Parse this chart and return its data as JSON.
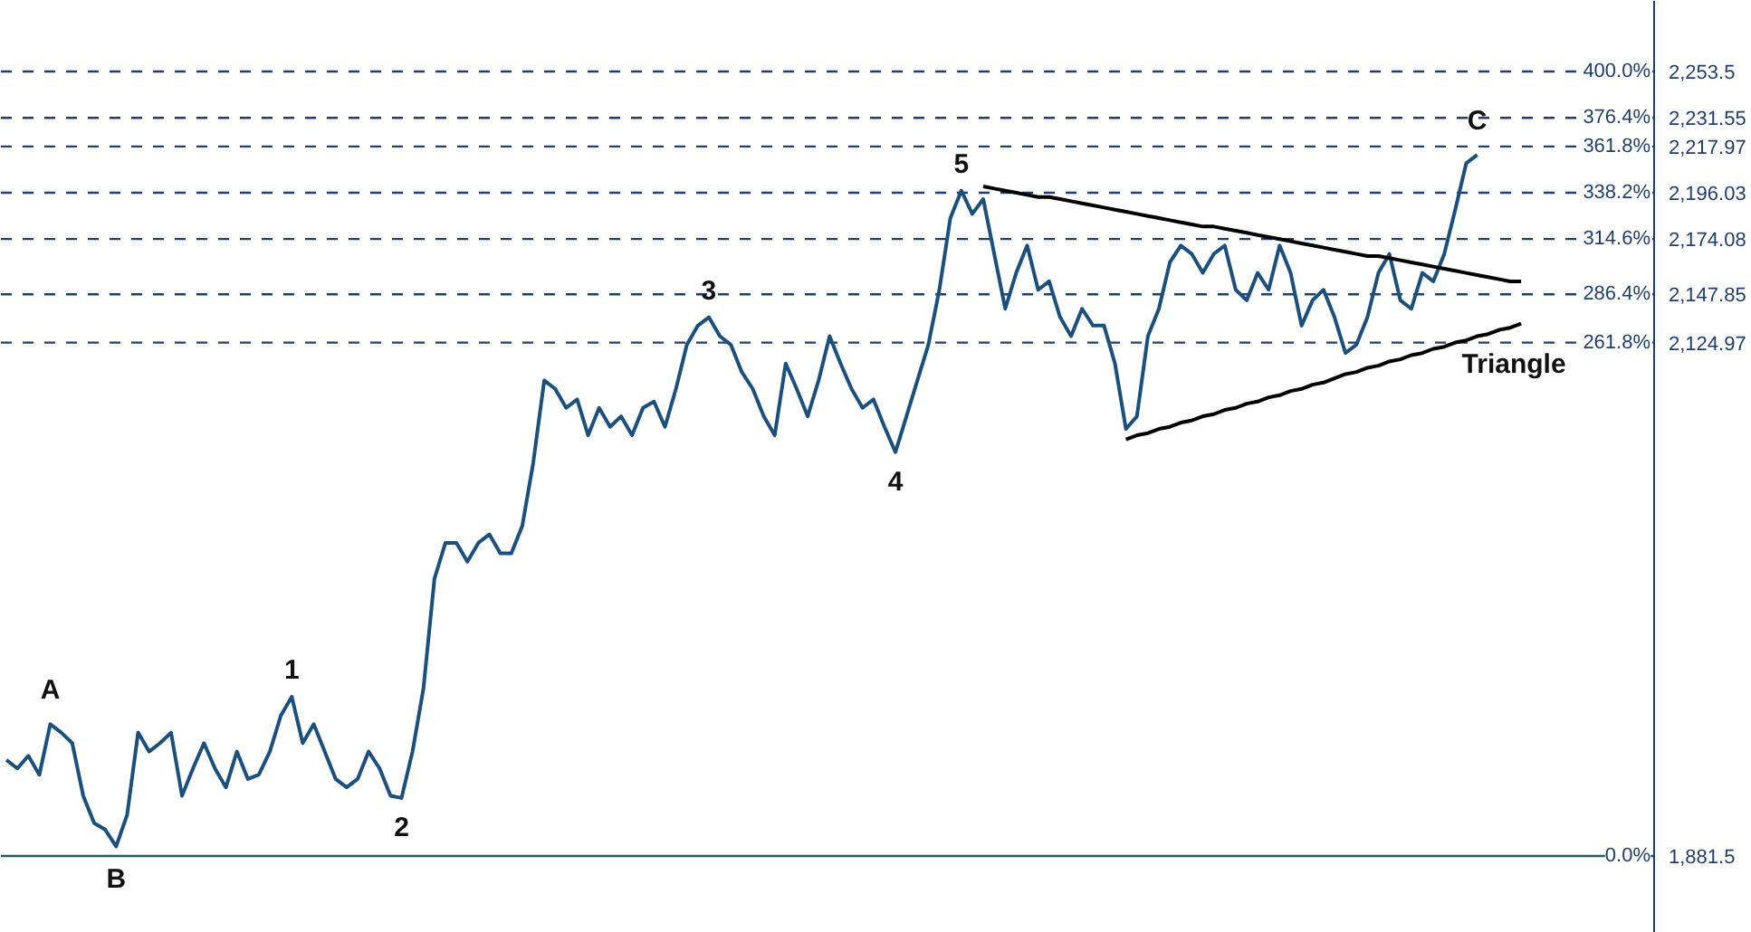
{
  "chart_data": {
    "type": "line",
    "ylim": [
      1845,
      2287
    ],
    "tick_labels": "y",
    "line_style": "solid",
    "categories": [
      null,
      null,
      null,
      null,
      null,
      null,
      null,
      null,
      null,
      null,
      null,
      null,
      null,
      null,
      null,
      null,
      null,
      null,
      null,
      null,
      null,
      null,
      null,
      null,
      null,
      null,
      null,
      null,
      null,
      null,
      null,
      null,
      null,
      null,
      null,
      null,
      null,
      null,
      null,
      null,
      null,
      null,
      null,
      null,
      null,
      null,
      null,
      null,
      null,
      null,
      null,
      null,
      null,
      null,
      null,
      null,
      null,
      null,
      null,
      null,
      null,
      null,
      null,
      null,
      null,
      null,
      null,
      null,
      null,
      null,
      null,
      null,
      null,
      null,
      null,
      null,
      null,
      null,
      null,
      null,
      null,
      null,
      null,
      null,
      null,
      null,
      null,
      null,
      null,
      null,
      null,
      null,
      null,
      null,
      null,
      null,
      null,
      null,
      null,
      null,
      null,
      null,
      null,
      null,
      null,
      null,
      null,
      null,
      null,
      null,
      null,
      null,
      null,
      null,
      null,
      null,
      null,
      null,
      null,
      null,
      null,
      null,
      null,
      null,
      null,
      null,
      null,
      null,
      null,
      null,
      null,
      null,
      null,
      null,
      null,
      null,
      null,
      null,
      null
    ],
    "yticks": [
      {
        "value": 2253.5,
        "label": "2,253.5"
      },
      {
        "value": 2231.55,
        "label": "2,231.55"
      },
      {
        "value": 2217.97,
        "label": "2,217.97"
      },
      {
        "value": 2196.03,
        "label": "2,196.03"
      },
      {
        "value": 2174.08,
        "label": "2,174.08"
      },
      {
        "value": 2147.85,
        "label": "2,147.85"
      },
      {
        "value": 2124.97,
        "label": "2,124.97"
      },
      {
        "value": 1881.5,
        "label": "1,881.5"
      }
    ],
    "annotations": [
      {
        "text": "A",
        "y": 1944
      },
      {
        "text": "B",
        "y": 1886
      },
      {
        "text": "1",
        "y": 1957
      },
      {
        "text": "2",
        "y": 1909
      },
      {
        "text": "3",
        "y": 2137
      },
      {
        "text": "4",
        "y": 2073
      },
      {
        "text": "5",
        "y": 2197
      },
      {
        "text": "C",
        "y": 2214
      },
      {
        "text": "400.0%",
        "y": 2253.5
      },
      {
        "text": "376.4%",
        "y": 2231.55
      },
      {
        "text": "361.8%",
        "y": 2217.97
      },
      {
        "text": "338.2%",
        "y": 2196.03
      },
      {
        "text": "314.6%",
        "y": 2174.08
      },
      {
        "text": "286.4%",
        "y": 2147.85
      },
      {
        "text": "261.8%",
        "y": 2124.97
      },
      {
        "text": "0.0%",
        "y": 1881.5
      }
    ],
    "ref_lines": [
      {
        "axis": "y",
        "value": 2253.5,
        "color": "#1f3f6f",
        "line_style": "dashed"
      },
      {
        "axis": "y",
        "value": 2231.55,
        "color": "#1f3f6f",
        "line_style": "dashed"
      },
      {
        "axis": "y",
        "value": 2217.97,
        "color": "#1f3f6f",
        "line_style": "dashed"
      },
      {
        "axis": "y",
        "value": 2196.03,
        "color": "#1f3f6f",
        "line_style": "dashed"
      },
      {
        "axis": "y",
        "value": 2174.08,
        "color": "#1f3f6f",
        "line_style": "dashed"
      },
      {
        "axis": "y",
        "value": 2147.85,
        "color": "#1f3f6f",
        "line_style": "dashed"
      },
      {
        "axis": "y",
        "value": 2124.97,
        "color": "#1f3f6f",
        "line_style": "dashed"
      },
      {
        "axis": "y",
        "value": 1881.5,
        "color": "#2a5a6a",
        "line_style": "solid"
      }
    ],
    "series": [
      {
        "color": "#1b4f7c",
        "values": [
          1927,
          1923,
          1929,
          1920,
          1944,
          1940,
          1935,
          1910,
          1897,
          1894,
          1886,
          1901,
          1940,
          1931,
          1935,
          1940,
          1910,
          1923,
          1935,
          1923,
          1914,
          1931,
          1918,
          1920,
          1931,
          1948,
          1957,
          1935,
          1944,
          1931,
          1918,
          1914,
          1918,
          1931,
          1923,
          1910,
          1909,
          1931,
          1961,
          2013,
          2030,
          2030,
          2021,
          2030,
          2034,
          2025,
          2025,
          2038,
          2068,
          2107,
          2103,
          2094,
          2098,
          2081,
          2094,
          2085,
          2090,
          2081,
          2094,
          2097,
          2085,
          2103,
          2124,
          2133,
          2137,
          2128,
          2124,
          2111,
          2103,
          2090,
          2081,
          2115,
          2103,
          2090,
          2107,
          2128,
          2115,
          2103,
          2094,
          2098,
          2085,
          2073,
          2090,
          2107,
          2124,
          2150,
          2184,
          2197,
          2186,
          2193,
          2167,
          2141,
          2158,
          2171,
          2150,
          2154,
          2137,
          2128,
          2141,
          2133,
          2133,
          2115,
          2084,
          2090,
          2128,
          2141,
          2163,
          2171,
          2167,
          2158,
          2167,
          2171,
          2150,
          2145,
          2158,
          2150,
          2171,
          2158,
          2133,
          2145,
          2150,
          2137,
          2120,
          2124,
          2137,
          2158,
          2167,
          2145,
          2141,
          2158,
          2154,
          2167,
          2188,
          2210,
          2214,
          null,
          null,
          null,
          null
        ]
      },
      {
        "type": "line",
        "color": "#000000",
        "values": [
          null,
          null,
          null,
          null,
          null,
          null,
          null,
          null,
          null,
          null,
          null,
          null,
          null,
          null,
          null,
          null,
          null,
          null,
          null,
          null,
          null,
          null,
          null,
          null,
          null,
          null,
          null,
          null,
          null,
          null,
          null,
          null,
          null,
          null,
          null,
          null,
          null,
          null,
          null,
          null,
          null,
          null,
          null,
          null,
          null,
          null,
          null,
          null,
          null,
          null,
          null,
          null,
          null,
          null,
          null,
          null,
          null,
          null,
          null,
          null,
          null,
          null,
          null,
          null,
          null,
          null,
          null,
          null,
          null,
          null,
          null,
          null,
          null,
          null,
          null,
          null,
          null,
          null,
          null,
          null,
          null,
          null,
          null,
          null,
          null,
          null,
          null,
          null,
          null,
          2199,
          2198,
          2197,
          2196,
          2195,
          2194,
          2194,
          2193,
          2192,
          2191,
          2190,
          2189,
          2188,
          2187,
          2186,
          2185,
          2184,
          2183,
          2182,
          2181,
          2180,
          2180,
          2179,
          2178,
          2177,
          2176,
          2175,
          2174,
          2173,
          2172,
          2171,
          2170,
          2169,
          2168,
          2167,
          2166,
          2166,
          2165,
          2164,
          2163,
          2162,
          2161,
          2160,
          2159,
          2158,
          2157,
          2156,
          2155,
          2154,
          2154
        ]
      },
      {
        "type": "line",
        "name": "Triangle",
        "color": "#000000",
        "values": [
          null,
          null,
          null,
          null,
          null,
          null,
          null,
          null,
          null,
          null,
          null,
          null,
          null,
          null,
          null,
          null,
          null,
          null,
          null,
          null,
          null,
          null,
          null,
          null,
          null,
          null,
          null,
          null,
          null,
          null,
          null,
          null,
          null,
          null,
          null,
          null,
          null,
          null,
          null,
          null,
          null,
          null,
          null,
          null,
          null,
          null,
          null,
          null,
          null,
          null,
          null,
          null,
          null,
          null,
          null,
          null,
          null,
          null,
          null,
          null,
          null,
          null,
          null,
          null,
          null,
          null,
          null,
          null,
          null,
          null,
          null,
          null,
          null,
          null,
          null,
          null,
          null,
          null,
          null,
          null,
          null,
          null,
          null,
          null,
          null,
          null,
          null,
          null,
          null,
          null,
          null,
          null,
          null,
          null,
          null,
          null,
          null,
          null,
          null,
          null,
          null,
          null,
          2079,
          2081,
          2082,
          2084,
          2085,
          2087,
          2088,
          2090,
          2091,
          2093,
          2094,
          2096,
          2097,
          2099,
          2100,
          2102,
          2103,
          2105,
          2106,
          2108,
          2110,
          2111,
          2113,
          2114,
          2116,
          2117,
          2119,
          2120,
          2122,
          2123,
          2125,
          2126,
          2128,
          2129,
          2131,
          2132,
          2134
        ]
      }
    ]
  }
}
